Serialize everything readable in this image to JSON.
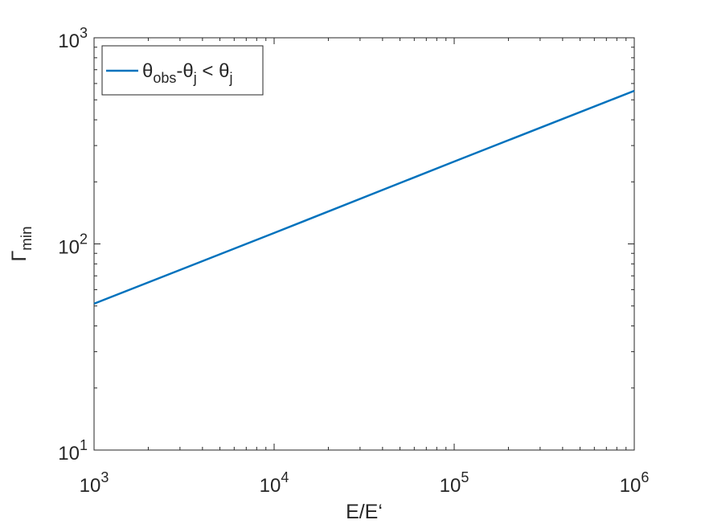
{
  "chart_data": {
    "type": "line",
    "x_label": "E/E‘",
    "y_label": "Γ_{min}",
    "x": [
      1000,
      10000,
      100000,
      1000000
    ],
    "series": [
      {
        "name": "θ_{obs}-θ_{j} < θ_{j}",
        "color": "#0072bd",
        "values": [
          51.3,
          113,
          251,
          553
        ]
      }
    ],
    "xlim": [
      1000,
      1000000
    ],
    "ylim": [
      10,
      1000
    ],
    "xticks": [
      {
        "value": 1000,
        "label": "10^{3}"
      },
      {
        "value": 10000,
        "label": "10^{4}"
      },
      {
        "value": 100000,
        "label": "10^{5}"
      },
      {
        "value": 1000000,
        "label": "10^{6}"
      }
    ],
    "yticks": [
      {
        "value": 10,
        "label": "10^{1}"
      },
      {
        "value": 100,
        "label": "10^{2}"
      },
      {
        "value": 1000,
        "label": "10^{3}"
      }
    ],
    "xscale": "log",
    "yscale": "log",
    "legend": "upper left"
  }
}
